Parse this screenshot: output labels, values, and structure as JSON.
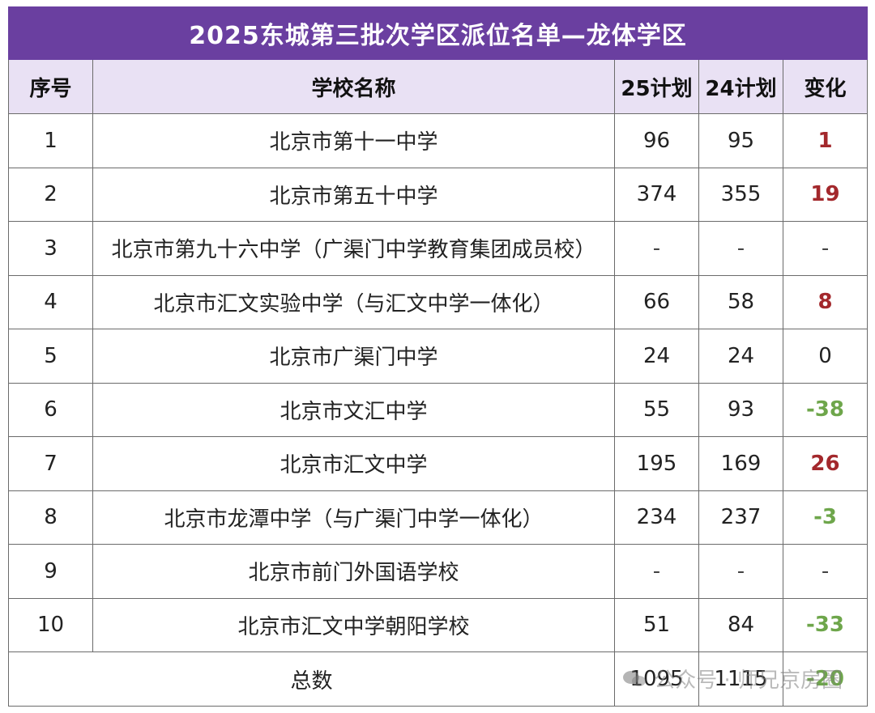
{
  "title": "2025东城第三批次学区派位名单—龙体学区",
  "headers": {
    "no": "序号",
    "school": "学校名称",
    "plan25": "25计划",
    "plan24": "24计划",
    "change": "变化"
  },
  "rows": [
    {
      "no": "1",
      "school": "北京市第十一中学",
      "plan25": "96",
      "plan24": "95",
      "change": "1",
      "trend": "pos"
    },
    {
      "no": "2",
      "school": "北京市第五十中学",
      "plan25": "374",
      "plan24": "355",
      "change": "19",
      "trend": "pos"
    },
    {
      "no": "3",
      "school": "北京市第九十六中学（广渠门中学教育集团成员校）",
      "plan25": "-",
      "plan24": "-",
      "change": "-",
      "trend": "dash"
    },
    {
      "no": "4",
      "school": "北京市汇文实验中学（与汇文中学一体化）",
      "plan25": "66",
      "plan24": "58",
      "change": "8",
      "trend": "pos"
    },
    {
      "no": "5",
      "school": "北京市广渠门中学",
      "plan25": "24",
      "plan24": "24",
      "change": "0",
      "trend": "zero"
    },
    {
      "no": "6",
      "school": "北京市文汇中学",
      "plan25": "55",
      "plan24": "93",
      "change": "-38",
      "trend": "neg"
    },
    {
      "no": "7",
      "school": "北京市汇文中学",
      "plan25": "195",
      "plan24": "169",
      "change": "26",
      "trend": "pos"
    },
    {
      "no": "8",
      "school": "北京市龙潭中学（与广渠门中学一体化）",
      "plan25": "234",
      "plan24": "237",
      "change": "-3",
      "trend": "neg"
    },
    {
      "no": "9",
      "school": "北京市前门外国语学校",
      "plan25": "-",
      "plan24": "-",
      "change": "-",
      "trend": "dash"
    },
    {
      "no": "10",
      "school": "北京市汇文中学朝阳学校",
      "plan25": "51",
      "plan24": "84",
      "change": "-33",
      "trend": "neg"
    }
  ],
  "total": {
    "label": "总数",
    "plan25": "1095",
    "plan24": "1115",
    "change": "-20",
    "trend": "neg"
  },
  "watermark": {
    "icon": "wechat-icon",
    "text": "公众号 · 师兄京房圈"
  },
  "colors": {
    "title_bg": "#6a3fa0",
    "header_bg": "#e9e1f4",
    "positive": "#a3282c",
    "negative": "#6ea64b"
  }
}
